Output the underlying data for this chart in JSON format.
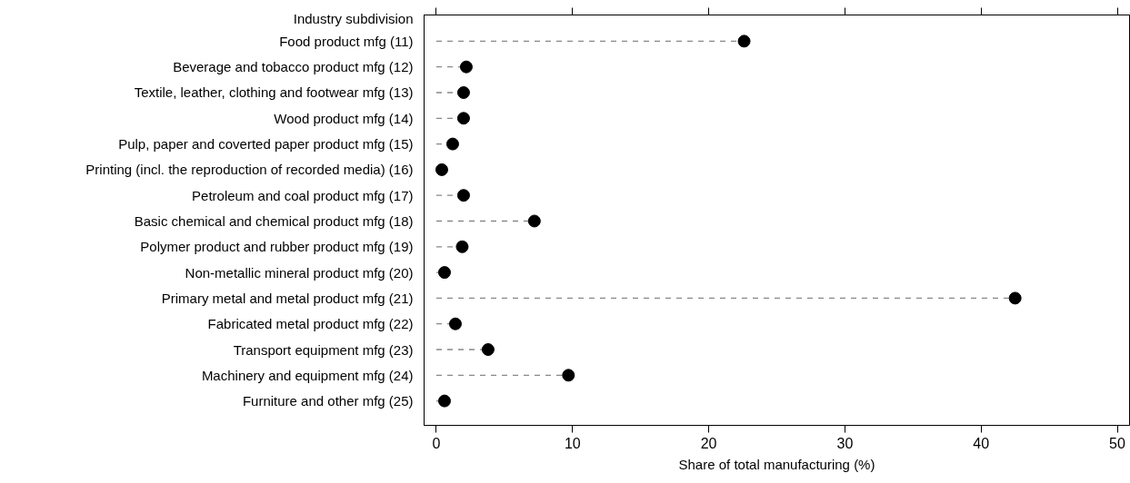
{
  "chart_data": {
    "type": "lollipop",
    "orientation": "horizontal",
    "xlabel": "Share of total manufacturing (%)",
    "ylabel": "Industry subdivision",
    "categories": [
      "Food product mfg (11)",
      "Beverage and tobacco product mfg (12)",
      "Textile, leather, clothing and footwear mfg (13)",
      "Wood product mfg (14)",
      "Pulp, paper and coverted paper product mfg (15)",
      "Printing (incl. the reproduction of recorded media) (16)",
      "Petroleum and coal product mfg (17)",
      "Basic chemical and chemical product mfg (18)",
      "Polymer product and rubber product mfg (19)",
      "Non-metallic mineral product mfg (20)",
      "Primary metal and metal product mfg (21)",
      "Fabricated metal product mfg (22)",
      "Transport equipment mfg (23)",
      "Machinery and equipment mfg (24)",
      "Furniture and other mfg (25)"
    ],
    "values": [
      22.6,
      2.2,
      2.0,
      2.0,
      1.2,
      0.4,
      2.0,
      7.2,
      1.9,
      0.6,
      42.5,
      1.4,
      3.8,
      9.7,
      0.6
    ],
    "color": "#000000",
    "marker": "circle",
    "line_style": "dashed",
    "xlim": [
      -0.9,
      50.9
    ],
    "xticks": [
      0,
      10,
      20,
      30,
      40,
      50
    ],
    "grid": false
  }
}
